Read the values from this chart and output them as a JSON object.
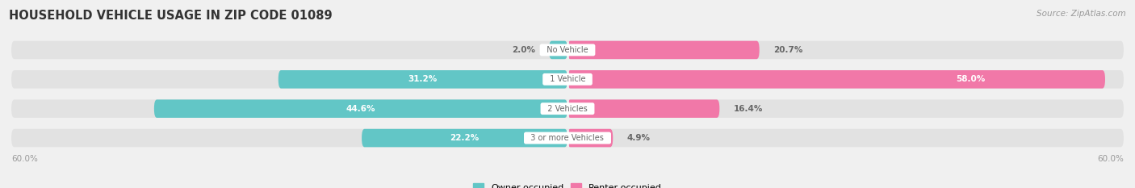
{
  "title": "HOUSEHOLD VEHICLE USAGE IN ZIP CODE 01089",
  "source": "Source: ZipAtlas.com",
  "categories": [
    "No Vehicle",
    "1 Vehicle",
    "2 Vehicles",
    "3 or more Vehicles"
  ],
  "owner_values": [
    2.0,
    31.2,
    44.6,
    22.2
  ],
  "renter_values": [
    20.7,
    58.0,
    16.4,
    4.9
  ],
  "owner_color": "#62C6C6",
  "renter_color": "#F178A8",
  "owner_color_light": "#8DD8D8",
  "renter_color_light": "#F8AACB",
  "axis_max": 60.0,
  "axis_label": "60.0%",
  "owner_label": "Owner-occupied",
  "renter_label": "Renter-occupied",
  "title_fontsize": 10.5,
  "source_fontsize": 7.5,
  "bar_height": 0.62,
  "background_color": "#f0f0f0",
  "row_bg_color": "#e2e2e2",
  "label_color_dark": "#666666",
  "label_color_white": "#ffffff",
  "center_label_bg": "#ffffff",
  "white_gap": "#f0f0f0"
}
